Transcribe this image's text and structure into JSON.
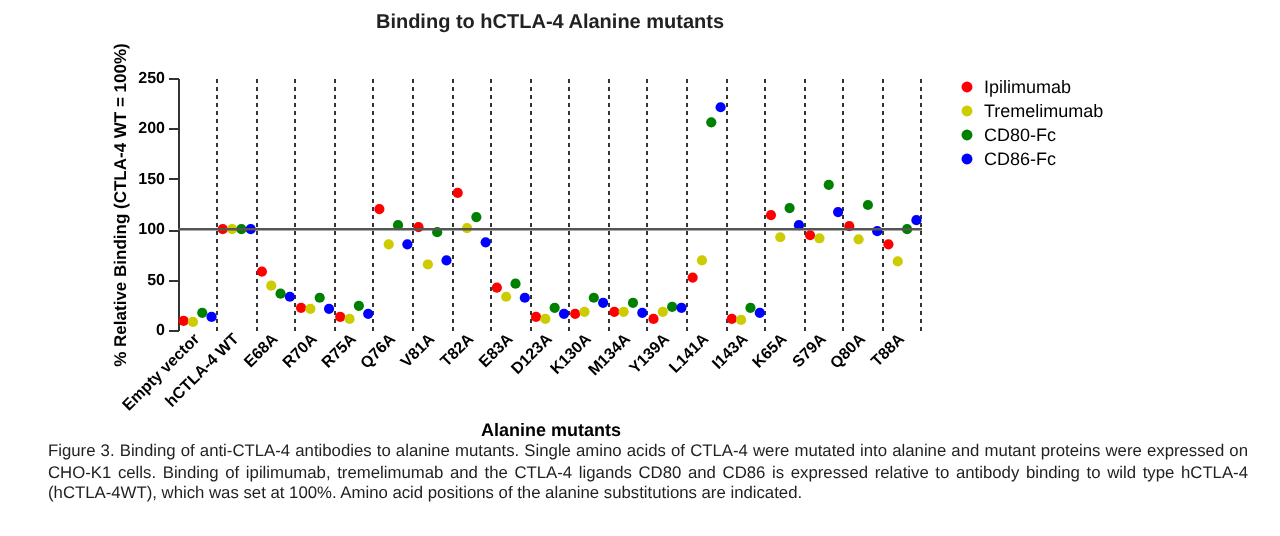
{
  "chart_data": {
    "type": "scatter",
    "title": "Binding to hCTLA-4 Alanine mutants",
    "xlabel": "Alanine mutants",
    "ylabel": "% Relative Binding  (CTLA-4 WT = 100%)",
    "categories": [
      "Empty vector",
      "hCTLA-4 WT",
      "E68A",
      "R70A",
      "R75A",
      "Q76A",
      "V81A",
      "T82A",
      "E83A",
      "D123A",
      "K130A",
      "M134A",
      "Y139A",
      "L141A",
      "I143A",
      "K65A",
      "S79A",
      "Q80A",
      "T88A"
    ],
    "series": [
      {
        "name": "Ipilimumab",
        "color": "#ff0000",
        "values": [
          9,
          100,
          58,
          22,
          13,
          120,
          102,
          136,
          42,
          13,
          16,
          18,
          11,
          52,
          11,
          114,
          94,
          103,
          85
        ]
      },
      {
        "name": "Tremelimumab",
        "color": "#cccc00",
        "values": [
          8,
          100,
          44,
          21,
          11,
          85,
          65,
          101,
          33,
          11,
          18,
          18,
          18,
          69,
          10,
          92,
          91,
          90,
          68
        ]
      },
      {
        "name": "CD80-Fc",
        "color": "#008000",
        "values": [
          17,
          100,
          36,
          32,
          24,
          104,
          97,
          112,
          46,
          22,
          32,
          27,
          23,
          206,
          22,
          121,
          144,
          124,
          100
        ]
      },
      {
        "name": "CD86-Fc",
        "color": "#0000ff",
        "values": [
          13,
          100,
          33,
          21,
          16,
          85,
          69,
          87,
          32,
          16,
          27,
          17,
          22,
          221,
          17,
          104,
          117,
          98,
          109
        ]
      }
    ],
    "ylim": [
      0,
      250
    ],
    "yticks": [
      0,
      50,
      100,
      150,
      200,
      250
    ],
    "ref_lines": [
      {
        "axis": "y",
        "value": 100
      }
    ],
    "grid": "x",
    "legend": "right",
    "marker": "circle",
    "annotations": [
      "Figure 3. Binding of anti-CTLA-4 antibodies to alanine mutants. Single amino acids of CTLA-4 were mutated into alanine and mutant proteins were expressed on CHO-K1 cells. Binding of ipilimumab, tremelimumab and the CTLA-4 ligands CD80 and CD86 is expressed relative to antibody binding to wild type hCTLA-4 (hCTLA-4WT), which was set at 100%. Amino acid positions of the alanine substitutions are indicated."
    ]
  }
}
